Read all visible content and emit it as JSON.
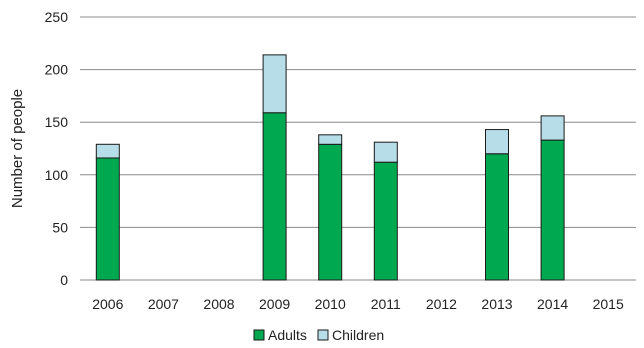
{
  "chart_data": {
    "type": "bar",
    "stacked": true,
    "categories": [
      "2006",
      "2007",
      "2008",
      "2009",
      "2010",
      "2011",
      "2012",
      "2013",
      "2014",
      "2015"
    ],
    "series": [
      {
        "name": "Adults",
        "color": "#00a84f",
        "values": [
          116,
          0,
          0,
          159,
          129,
          112,
          0,
          120,
          133,
          0
        ]
      },
      {
        "name": "Children",
        "color": "#b7dde8",
        "values": [
          13,
          0,
          0,
          55,
          9,
          19,
          0,
          23,
          23,
          0
        ]
      }
    ],
    "title": "",
    "xlabel": "",
    "ylabel": "Number of people",
    "ylim": [
      0,
      250
    ],
    "yticks": [
      0,
      50,
      100,
      150,
      200,
      250
    ],
    "grid": true,
    "legend_position": "bottom"
  }
}
